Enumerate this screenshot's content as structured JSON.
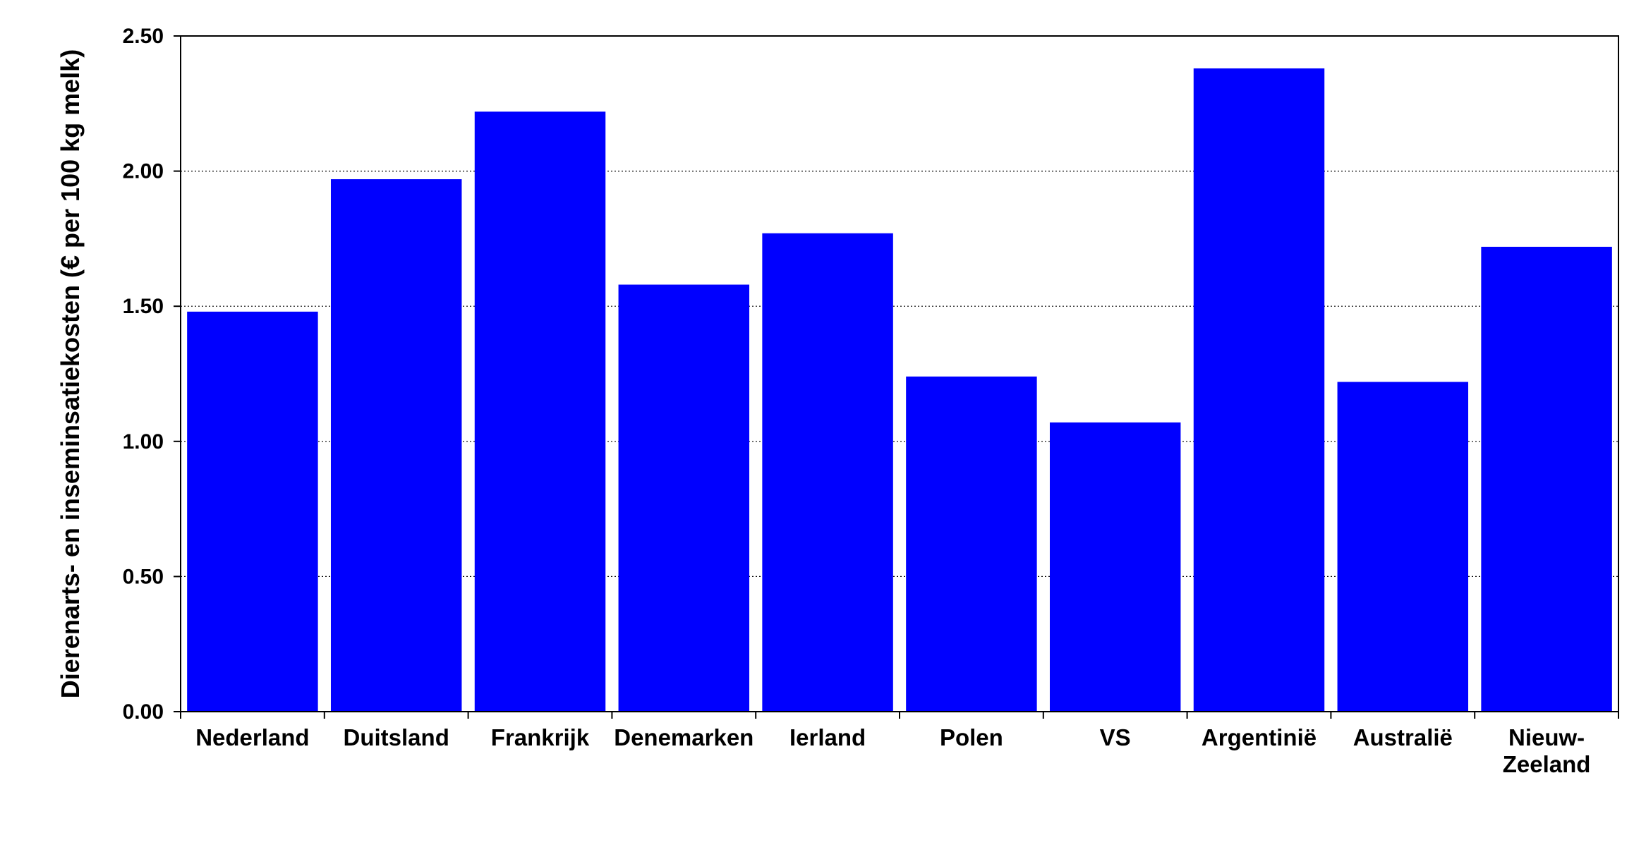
{
  "chart_data": {
    "type": "bar",
    "title": "",
    "xlabel": "",
    "ylabel": "Dierenarts- en inseminsatiekosten (€ per 100 kg melk)",
    "categories": [
      [
        "Nederland"
      ],
      [
        "Duitsland"
      ],
      [
        "Frankrijk"
      ],
      [
        "Denemarken"
      ],
      [
        "Ierland"
      ],
      [
        "Polen"
      ],
      [
        "VS"
      ],
      [
        "Argentinië"
      ],
      [
        "Australië"
      ],
      [
        "Nieuw-",
        "Zeeland"
      ]
    ],
    "values": [
      1.48,
      1.97,
      2.22,
      1.58,
      1.77,
      1.24,
      1.07,
      2.38,
      1.22,
      1.72
    ],
    "ylim": [
      0,
      2.5
    ],
    "yticks": [
      "0.00",
      "0.50",
      "1.00",
      "1.50",
      "2.00",
      "2.50"
    ],
    "grid": "horizontal dotted",
    "legend": "none",
    "bar_color": "#0000FF"
  }
}
